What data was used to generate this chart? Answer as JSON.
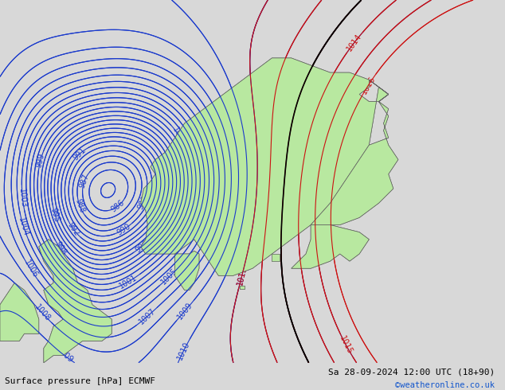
{
  "title_left": "Surface pressure [hPa] ECMWF",
  "title_right": "Sa 28-09-2024 12:00 UTC (18+90)",
  "copyright": "©weatheronline.co.uk",
  "bg_color": "#d8d8d8",
  "land_color": "#b8e8a0",
  "border_color": "#606060",
  "isobar_blue_color": "#1a3acc",
  "isobar_red_color": "#cc1111",
  "isobar_black_color": "#000000",
  "label_color_blue": "#1a3acc",
  "label_color_black": "#000000",
  "font_size_labels": 7,
  "font_size_title": 8
}
